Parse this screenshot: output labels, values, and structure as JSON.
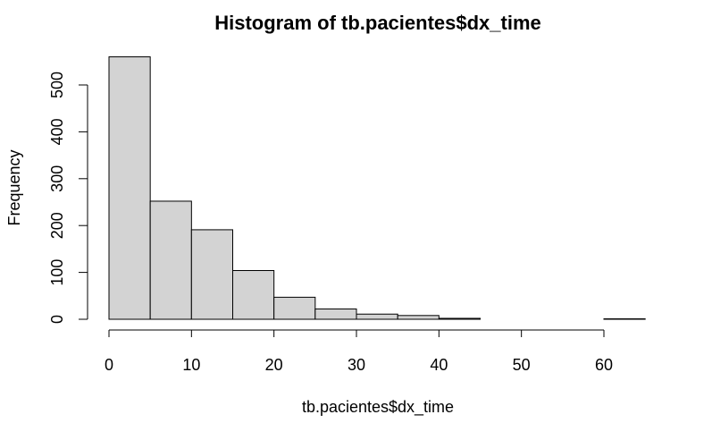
{
  "chart_data": {
    "type": "bar",
    "title": "Histogram of tb.pacientes$dx_time",
    "xlabel": "tb.pacientes$dx_time",
    "ylabel": "Frequency",
    "bins": [
      {
        "start": 0,
        "end": 5,
        "count": 560
      },
      {
        "start": 5,
        "end": 10,
        "count": 252
      },
      {
        "start": 10,
        "end": 15,
        "count": 191
      },
      {
        "start": 15,
        "end": 20,
        "count": 104
      },
      {
        "start": 20,
        "end": 25,
        "count": 47
      },
      {
        "start": 25,
        "end": 30,
        "count": 22
      },
      {
        "start": 30,
        "end": 35,
        "count": 11
      },
      {
        "start": 35,
        "end": 40,
        "count": 8
      },
      {
        "start": 40,
        "end": 45,
        "count": 2
      },
      {
        "start": 45,
        "end": 50,
        "count": 0
      },
      {
        "start": 50,
        "end": 55,
        "count": 0
      },
      {
        "start": 55,
        "end": 60,
        "count": 0
      },
      {
        "start": 60,
        "end": 65,
        "count": 1
      }
    ],
    "xlim": [
      0,
      65
    ],
    "ylim": [
      0,
      560
    ],
    "x_ticks": [
      0,
      10,
      20,
      30,
      40,
      50,
      60
    ],
    "y_ticks": [
      0,
      100,
      200,
      300,
      400,
      500
    ],
    "bar_color": "#d3d3d3",
    "grid": false
  }
}
